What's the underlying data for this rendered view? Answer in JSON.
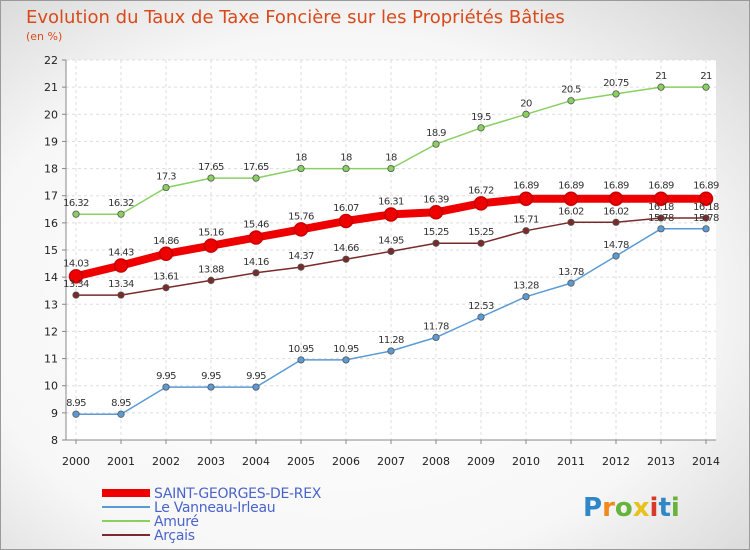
{
  "header": {
    "title": "Evolution du Taux de Taxe Foncière sur les Propriétés Bâties",
    "unit": "(en %)"
  },
  "logo": {
    "text": "Proxiti"
  },
  "chart_data": {
    "type": "line",
    "title": "Evolution du Taux de Taxe Foncière sur les Propriétés Bâties",
    "ylabel": "(en %)",
    "xlabel": "",
    "ylim": [
      8,
      22
    ],
    "yticks": [
      8,
      9,
      10,
      11,
      12,
      13,
      14,
      15,
      16,
      17,
      18,
      19,
      20,
      21,
      22
    ],
    "x": [
      "2000",
      "2001",
      "2002",
      "2003",
      "2004",
      "2005",
      "2006",
      "2007",
      "2008",
      "2009",
      "2010",
      "2011",
      "2012",
      "2013",
      "2014"
    ],
    "grid": true,
    "legend_position": "bottom-left",
    "series": [
      {
        "name": "SAINT-GEORGES-DE-REX",
        "color": "#ee0000",
        "bold": true,
        "values": [
          14.03,
          14.43,
          14.86,
          15.16,
          15.46,
          15.76,
          16.07,
          16.31,
          16.39,
          16.72,
          16.89,
          16.89,
          16.89,
          16.89,
          16.89
        ],
        "labels": [
          "14.03",
          "14.43",
          "14.86",
          "15.16",
          "15.46",
          "15.76",
          "16.07",
          "16.31",
          "16.39",
          "16.72",
          "16.89",
          "16.89",
          "16.89",
          "16.89",
          "16.89"
        ]
      },
      {
        "name": "Le Vanneau-Irleau",
        "color": "#5b9bd5",
        "bold": false,
        "values": [
          8.95,
          8.95,
          9.95,
          9.95,
          9.95,
          10.95,
          10.95,
          11.28,
          11.78,
          12.53,
          13.28,
          13.78,
          14.78,
          15.78,
          15.78
        ],
        "labels": [
          "8.95",
          "8.95",
          "9.95",
          "9.95",
          "9.95",
          "10.95",
          "10.95",
          "11.28",
          "11.78",
          "12.53",
          "13.28",
          "13.78",
          "14.78",
          "15.78",
          "15.78"
        ]
      },
      {
        "name": "Amuré",
        "color": "#88d060",
        "bold": false,
        "values": [
          16.32,
          16.32,
          17.3,
          17.65,
          17.65,
          18,
          18,
          18,
          18.9,
          19.5,
          20,
          20.5,
          20.75,
          21,
          21
        ],
        "labels": [
          "16.32",
          "16.32",
          "17.3",
          "17.65",
          "17.65",
          "18",
          "18",
          "18",
          "18.9",
          "19.5",
          "20",
          "20.5",
          "20.75",
          "21",
          "21"
        ]
      },
      {
        "name": "Arçais",
        "color": "#7a2a2a",
        "bold": false,
        "values": [
          13.34,
          13.34,
          13.61,
          13.88,
          14.16,
          14.37,
          14.66,
          14.95,
          15.25,
          15.25,
          15.71,
          16.02,
          16.02,
          16.18,
          16.18
        ],
        "labels": [
          "13.34",
          "13.34",
          "13.61",
          "13.88",
          "14.16",
          "14.37",
          "14.66",
          "14.95",
          "15.25",
          "15.25",
          "15.71",
          "16.02",
          "16.02",
          "16.18",
          "16.18"
        ]
      }
    ]
  }
}
